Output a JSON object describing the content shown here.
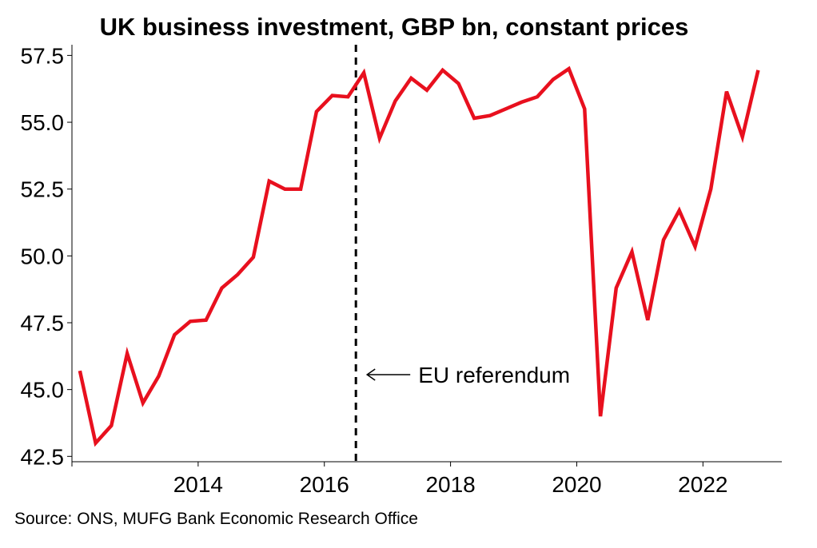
{
  "chart_data": {
    "type": "line",
    "title": "UK business investment, GBP bn, constant prices",
    "xlabel": "",
    "ylabel": "",
    "x_ticks": [
      2014,
      2016,
      2018,
      2020,
      2022
    ],
    "y_ticks": [
      "42.5",
      "45.0",
      "47.5",
      "50.0",
      "52.5",
      "55.0",
      "57.5"
    ],
    "xlim": [
      2012.0,
      2023.25
    ],
    "ylim": [
      42.3,
      57.9
    ],
    "grid": false,
    "series": [
      {
        "color": "#e8101e",
        "points": [
          [
            2012.125,
            45.7
          ],
          [
            2012.375,
            43.0
          ],
          [
            2012.625,
            43.65
          ],
          [
            2012.875,
            46.35
          ],
          [
            2013.125,
            44.5
          ],
          [
            2013.375,
            45.5
          ],
          [
            2013.625,
            47.05
          ],
          [
            2013.875,
            47.55
          ],
          [
            2014.125,
            47.6
          ],
          [
            2014.375,
            48.8
          ],
          [
            2014.625,
            49.3
          ],
          [
            2014.875,
            49.95
          ],
          [
            2015.125,
            52.8
          ],
          [
            2015.375,
            52.5
          ],
          [
            2015.625,
            52.5
          ],
          [
            2015.875,
            55.4
          ],
          [
            2016.125,
            56.0
          ],
          [
            2016.375,
            55.95
          ],
          [
            2016.625,
            56.85
          ],
          [
            2016.875,
            54.4
          ],
          [
            2017.125,
            55.8
          ],
          [
            2017.375,
            56.65
          ],
          [
            2017.625,
            56.2
          ],
          [
            2017.875,
            56.95
          ],
          [
            2018.125,
            56.45
          ],
          [
            2018.375,
            55.15
          ],
          [
            2018.625,
            55.25
          ],
          [
            2018.875,
            55.5
          ],
          [
            2019.125,
            55.75
          ],
          [
            2019.375,
            55.95
          ],
          [
            2019.625,
            56.6
          ],
          [
            2019.875,
            57.0
          ],
          [
            2020.125,
            55.5
          ],
          [
            2020.375,
            44.0
          ],
          [
            2020.625,
            48.8
          ],
          [
            2020.875,
            50.15
          ],
          [
            2021.125,
            47.6
          ],
          [
            2021.375,
            50.6
          ],
          [
            2021.625,
            51.7
          ],
          [
            2021.875,
            50.35
          ],
          [
            2022.125,
            52.5
          ],
          [
            2022.375,
            56.15
          ],
          [
            2022.625,
            54.45
          ],
          [
            2022.875,
            56.95
          ]
        ]
      }
    ],
    "annotations": [
      {
        "x": 2016.5,
        "label": "EU referendum",
        "line_style": "dashed",
        "arrow": "left"
      }
    ],
    "source": "Source: ONS, MUFG Bank Economic Research Office"
  }
}
